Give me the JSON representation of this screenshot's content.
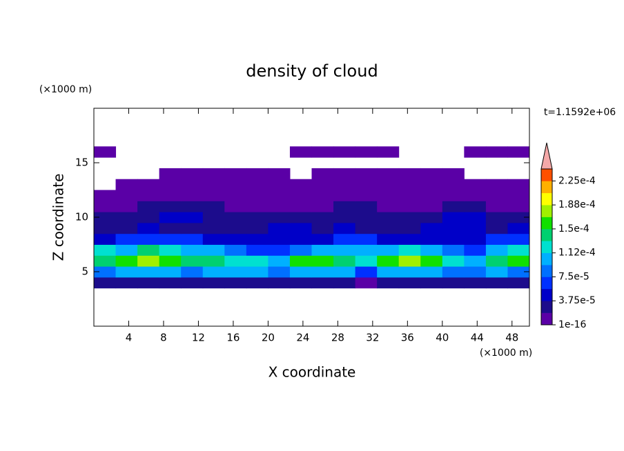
{
  "chart_data": {
    "type": "contour",
    "title": "density of cloud",
    "xlabel": "X coordinate",
    "ylabel": "Z coordinate",
    "x_unit": "(×1000 m)",
    "y_unit": "(×1000 m)",
    "annotation": "t=1.1592e+06",
    "xlim": [
      0,
      50
    ],
    "ylim": [
      0,
      20
    ],
    "xticks": [
      4,
      8,
      12,
      16,
      20,
      24,
      28,
      32,
      36,
      40,
      44,
      48
    ],
    "yticks": [
      5,
      10,
      15
    ],
    "x": [
      0,
      2.5,
      5,
      7.5,
      10,
      12.5,
      15,
      17.5,
      20,
      22.5,
      25,
      27.5,
      30,
      32.5,
      35,
      37.5,
      40,
      42.5,
      45,
      47.5,
      50
    ],
    "y": [
      3.5,
      4.5,
      5.5,
      6.5,
      7.5,
      8.5,
      9.5,
      10.5,
      11.5,
      12.5,
      13.5,
      14.5,
      15.5,
      16.5
    ],
    "z": [
      [
        2.5e-05,
        2.5e-05,
        2.5e-05,
        2.5e-05,
        2.5e-05,
        2.5e-05,
        2.5e-05,
        2.5e-05,
        2.5e-05,
        2.5e-05,
        2.5e-05,
        2.5e-05,
        5e-06,
        2.5e-05,
        2.5e-05,
        2.5e-05,
        2.5e-05,
        2.5e-05,
        2.5e-05,
        2.5e-05
      ],
      [
        8.5e-05,
        0.0001,
        0.0001,
        0.0001,
        8.5e-05,
        0.0001,
        0.0001,
        0.0001,
        8.5e-05,
        0.0001,
        0.0001,
        0.0001,
        6.5e-05,
        0.0001,
        0.0001,
        0.0001,
        8.5e-05,
        8.5e-05,
        0.0001,
        8.5e-05
      ],
      [
        0.00014,
        0.00016,
        0.00018,
        0.00016,
        0.00014,
        0.00014,
        0.00012,
        0.00012,
        0.0001,
        0.00016,
        0.00016,
        0.00014,
        0.00012,
        0.00016,
        0.00018,
        0.00016,
        0.00012,
        0.0001,
        0.00014,
        0.00016
      ],
      [
        0.00012,
        0.0001,
        0.00014,
        0.00012,
        0.0001,
        0.0001,
        8.5e-05,
        6.5e-05,
        6.5e-05,
        8.5e-05,
        0.0001,
        0.0001,
        0.0001,
        0.0001,
        0.00012,
        0.0001,
        8.5e-05,
        6.5e-05,
        0.0001,
        0.00012
      ],
      [
        4.5e-05,
        6.5e-05,
        6.5e-05,
        6.5e-05,
        6.5e-05,
        4.5e-05,
        4.5e-05,
        4.5e-05,
        4.5e-05,
        4.5e-05,
        4.5e-05,
        6.5e-05,
        6.5e-05,
        4.5e-05,
        4.5e-05,
        4.5e-05,
        4.5e-05,
        4.5e-05,
        6.5e-05,
        6.5e-05
      ],
      [
        2.5e-05,
        2.5e-05,
        4.5e-05,
        2.5e-05,
        2.5e-05,
        2.5e-05,
        2.5e-05,
        2.5e-05,
        4.5e-05,
        4.5e-05,
        2.5e-05,
        4.5e-05,
        2.5e-05,
        2.5e-05,
        2.5e-05,
        4.5e-05,
        4.5e-05,
        4.5e-05,
        2.5e-05,
        4.5e-05
      ],
      [
        2.5e-05,
        2.5e-05,
        2.5e-05,
        4.5e-05,
        4.5e-05,
        2.5e-05,
        2.5e-05,
        2.5e-05,
        2.5e-05,
        2.5e-05,
        2.5e-05,
        2.5e-05,
        2.5e-05,
        2.5e-05,
        2.5e-05,
        2.5e-05,
        4.5e-05,
        4.5e-05,
        2.5e-05,
        2.5e-05
      ],
      [
        1.5e-05,
        1.5e-05,
        2.5e-05,
        2.5e-05,
        2.5e-05,
        2.5e-05,
        1.5e-05,
        1.5e-05,
        1.5e-05,
        1.5e-05,
        1.5e-05,
        2.5e-05,
        2.5e-05,
        1.5e-05,
        1.5e-05,
        1.5e-05,
        2.5e-05,
        2.5e-05,
        1.5e-05,
        1.5e-05
      ],
      [
        5e-06,
        5e-06,
        1.5e-05,
        1.5e-05,
        1.5e-05,
        1.5e-05,
        1.5e-05,
        5e-06,
        5e-06,
        5e-06,
        5e-06,
        1.5e-05,
        1.5e-05,
        1.5e-05,
        5e-06,
        5e-06,
        5e-06,
        5e-06,
        5e-06,
        5e-06
      ],
      [
        null,
        5e-06,
        5e-06,
        5e-06,
        5e-06,
        5e-06,
        5e-06,
        5e-06,
        5e-06,
        5e-06,
        5e-06,
        5e-06,
        5e-06,
        5e-06,
        5e-06,
        5e-06,
        5e-06,
        5e-06,
        5e-06,
        5e-06
      ],
      [
        null,
        null,
        null,
        5e-06,
        5e-06,
        5e-06,
        5e-06,
        5e-06,
        5e-06,
        null,
        5e-06,
        5e-06,
        5e-06,
        5e-06,
        5e-06,
        5e-06,
        5e-06,
        null,
        null,
        null
      ],
      [
        null,
        null,
        null,
        null,
        null,
        null,
        null,
        null,
        null,
        null,
        null,
        null,
        null,
        null,
        null,
        null,
        null,
        null,
        null,
        null
      ],
      [
        5e-06,
        null,
        null,
        null,
        null,
        null,
        null,
        null,
        null,
        5e-06,
        5e-06,
        5e-06,
        5e-06,
        5e-06,
        null,
        null,
        null,
        5e-06,
        5e-06,
        5e-06
      ]
    ],
    "clim": [
      1e-16,
      0.00024375
    ],
    "colors": [
      "#5a00a6",
      "#1c0c8c",
      "#0000c8",
      "#0030ff",
      "#0070ff",
      "#00b0ff",
      "#00e0d0",
      "#00d070",
      "#10e000",
      "#a0f000",
      "#ffff00",
      "#ffb000",
      "#ff5000"
    ],
    "over_color": "#f4a8a8",
    "cticks": [
      {
        "value": 1e-16,
        "label": "1e-16"
      },
      {
        "value": 3.75e-05,
        "label": "3.75e-5"
      },
      {
        "value": 7.5e-05,
        "label": "7.5e-5"
      },
      {
        "value": 0.0001125,
        "label": "1.12e-4"
      },
      {
        "value": 0.00015,
        "label": "1.5e-4"
      },
      {
        "value": 0.0001875,
        "label": "1.88e-4"
      },
      {
        "value": 0.000225,
        "label": "2.25e-4"
      }
    ]
  }
}
